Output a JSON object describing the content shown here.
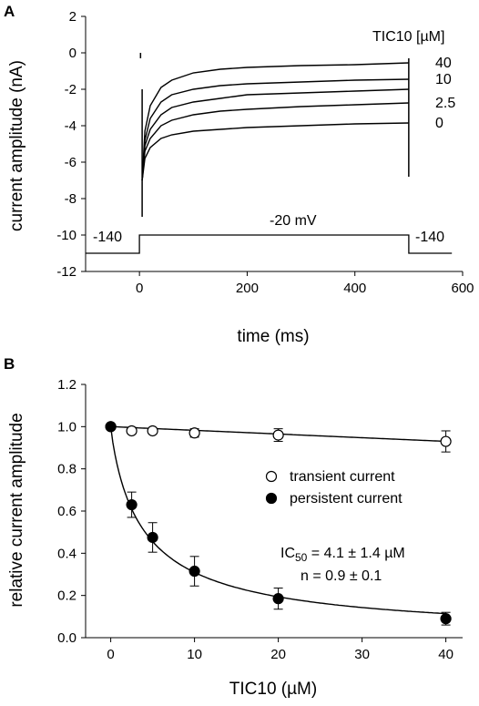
{
  "chart_data": [
    {
      "panel": "A",
      "type": "line",
      "xlabel": "time (ms)",
      "ylabel": "current amplitude (nA)",
      "xlim": [
        -100,
        600
      ],
      "ylim": [
        -12,
        2
      ],
      "xticks": [
        0,
        200,
        400,
        600
      ],
      "yticks": [
        2,
        0,
        -2,
        -4,
        -6,
        -8,
        -10,
        -12
      ],
      "legend_title": "TIC10 [µM]",
      "series": [
        {
          "name": "40",
          "t": [
            5,
            10,
            20,
            40,
            60,
            100,
            150,
            200,
            300,
            400,
            500
          ],
          "values": [
            -7.0,
            -4.3,
            -2.9,
            -1.9,
            -1.5,
            -1.1,
            -0.9,
            -0.8,
            -0.7,
            -0.65,
            -0.55
          ]
        },
        {
          "name": "10",
          "t": [
            5,
            10,
            20,
            40,
            60,
            100,
            150,
            200,
            300,
            400,
            500
          ],
          "values": [
            -7.0,
            -4.8,
            -3.6,
            -2.7,
            -2.3,
            -2.0,
            -1.8,
            -1.7,
            -1.6,
            -1.5,
            -1.45
          ]
        },
        {
          "name": "",
          "t": [
            5,
            10,
            20,
            40,
            60,
            100,
            150,
            200,
            300,
            400,
            500
          ],
          "values": [
            -7.0,
            -5.1,
            -4.2,
            -3.4,
            -3.0,
            -2.7,
            -2.5,
            -2.3,
            -2.2,
            -2.1,
            -2.0
          ]
        },
        {
          "name": "2.5",
          "t": [
            5,
            10,
            20,
            40,
            60,
            100,
            150,
            200,
            300,
            400,
            500
          ],
          "values": [
            -7.0,
            -5.4,
            -4.7,
            -4.0,
            -3.7,
            -3.4,
            -3.2,
            -3.1,
            -2.95,
            -2.85,
            -2.75
          ]
        },
        {
          "name": "0",
          "t": [
            5,
            10,
            20,
            40,
            60,
            100,
            150,
            200,
            300,
            400,
            500
          ],
          "values": [
            -7.0,
            -5.8,
            -5.2,
            -4.7,
            -4.5,
            -4.3,
            -4.2,
            -4.1,
            -4.0,
            -3.9,
            -3.85
          ]
        }
      ],
      "voltage_protocol": {
        "t": [
          -100,
          0,
          0,
          500,
          500,
          580
        ],
        "v": [
          -11,
          -11,
          -10,
          -10,
          -11,
          -11
        ],
        "labels": [
          "-140",
          "-20 mV",
          "-140"
        ]
      }
    },
    {
      "panel": "B",
      "type": "scatter",
      "xlabel": "TIC10 (µM)",
      "ylabel": "relative current amplitude",
      "xlim": [
        -3,
        42
      ],
      "ylim": [
        0,
        1.2
      ],
      "xticks": [
        0,
        10,
        20,
        30,
        40
      ],
      "yticks": [
        0.0,
        0.2,
        0.4,
        0.6,
        0.8,
        1.0,
        1.2
      ],
      "legend_position": "right",
      "series": [
        {
          "name": "transient current",
          "marker": "open-circle",
          "x": [
            0,
            2.5,
            5,
            10,
            20,
            40
          ],
          "values": [
            1.0,
            0.98,
            0.98,
            0.97,
            0.96,
            0.93
          ],
          "errors": [
            0,
            0,
            0,
            0.02,
            0.03,
            0.05
          ]
        },
        {
          "name": "persistent current",
          "marker": "filled-circle",
          "x": [
            0,
            2.5,
            5,
            10,
            20,
            40
          ],
          "values": [
            1.0,
            0.63,
            0.475,
            0.315,
            0.185,
            0.09
          ],
          "errors": [
            0,
            0.06,
            0.07,
            0.07,
            0.05,
            0.03
          ]
        }
      ],
      "fit_annotation": {
        "ic_label": "IC",
        "ic_subscript": "50",
        "ic_value": " = 4.1 ± 1.4 µM",
        "hill": "n = 0.9 ± 0.1"
      }
    }
  ]
}
